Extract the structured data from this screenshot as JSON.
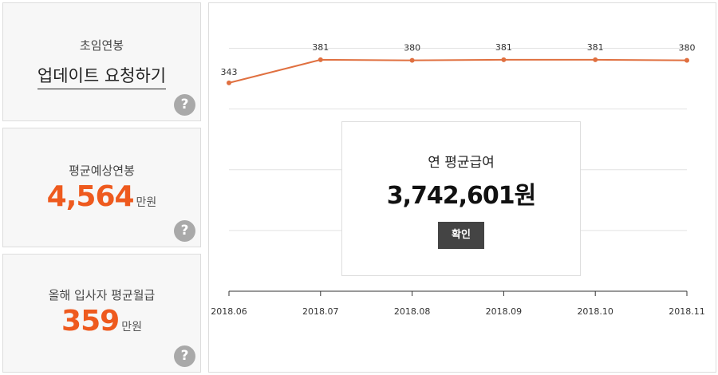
{
  "cards": [
    {
      "label": "초임연봉",
      "link": "업데이트 요청하기",
      "help": "?"
    },
    {
      "label": "평균예상연봉",
      "value": "4,564",
      "unit": "만원",
      "help": "?"
    },
    {
      "label": "올해 입사자 평균월급",
      "value": "359",
      "unit": "만원",
      "help": "?"
    }
  ],
  "chart_data": {
    "type": "line",
    "categories": [
      "2018.06",
      "2018.07",
      "2018.08",
      "2018.09",
      "2018.10",
      "2018.11"
    ],
    "values": [
      343,
      381,
      380,
      381,
      381,
      380
    ],
    "color": "#e07040",
    "ylim": [
      0,
      440
    ],
    "yticks": [
      100,
      200,
      300,
      400
    ],
    "grid": true
  },
  "popup": {
    "title": "연 평균급여",
    "amount": "3,742,601원",
    "button": "확인"
  }
}
